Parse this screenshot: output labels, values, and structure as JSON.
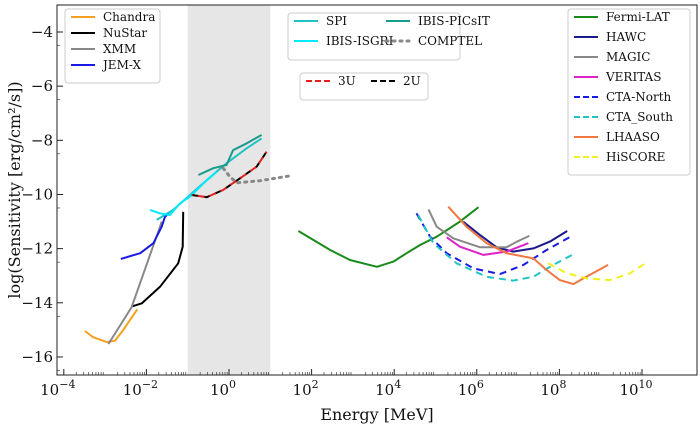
{
  "chart_data": {
    "type": "line",
    "xlabel": "Energy [MeV]",
    "ylabel": "log(Sensitivity [erg/cm²/s])",
    "x_scale": "log",
    "xlim_log10": [
      -4.2,
      11.3
    ],
    "ylim": [
      -16.66,
      -3.0
    ],
    "x_ticks": [
      {
        "base": "10",
        "exp": "−4",
        "v": -4
      },
      {
        "base": "10",
        "exp": "−2",
        "v": -2
      },
      {
        "base": "10",
        "exp": "0",
        "v": 0
      },
      {
        "base": "10",
        "exp": "2",
        "v": 2
      },
      {
        "base": "10",
        "exp": "4",
        "v": 4
      },
      {
        "base": "10",
        "exp": "6",
        "v": 6
      },
      {
        "base": "10",
        "exp": "8",
        "v": 8
      },
      {
        "base": "10",
        "exp": "10",
        "v": 10
      }
    ],
    "y_ticks": [
      "-4",
      "-6",
      "-8",
      "-10",
      "-12",
      "-14",
      "-16"
    ],
    "grid": false,
    "shaded_band_log10E": [
      -1,
      1
    ],
    "shaded_color": "#e6e6e6",
    "legends": [
      {
        "placement": "top-left",
        "items": [
          "Chandra",
          "NuStar",
          "XMM",
          "JEM-X"
        ]
      },
      {
        "placement": "top-center",
        "items": [
          "SPI",
          "IBIS-PICsIT",
          "IBIS-ISGRI",
          "COMPTEL"
        ]
      },
      {
        "placement": "upper-center",
        "items": [
          "3U",
          "2U"
        ]
      },
      {
        "placement": "top-right",
        "items": [
          "Fermi-LAT",
          "HAWC",
          "MAGIC",
          "VERITAS",
          "CTA-North",
          "CTA_South",
          "LHAASO",
          "HiSCORE"
        ]
      }
    ],
    "series": [
      {
        "name": "Chandra",
        "color": "#f5a020",
        "style": "solid",
        "log10E": [
          -3.49,
          -3.29,
          -2.96,
          -2.76,
          -2.56,
          -2.22
        ],
        "logS": [
          -15.04,
          -15.27,
          -15.45,
          -15.4,
          -15.0,
          -14.24
        ]
      },
      {
        "name": "NuStar",
        "color": "#000000",
        "style": "solid",
        "log10E": [
          -2.36,
          -2.11,
          -1.67,
          -1.23,
          -1.12,
          -1.11
        ],
        "logS": [
          -14.14,
          -14.02,
          -13.41,
          -12.54,
          -11.93,
          -10.64
        ]
      },
      {
        "name": "XMM",
        "color": "#888888",
        "style": "solid",
        "log10E": [
          -2.92,
          -2.36,
          -1.67,
          -1.63
        ],
        "logS": [
          -15.52,
          -14.17,
          -11.19,
          -11.0
        ]
      },
      {
        "name": "JEM-X",
        "color": "#1a1ae6",
        "style": "solid",
        "log10E": [
          -2.62,
          -2.15,
          -1.83,
          -1.63,
          -1.55,
          -1.45
        ],
        "logS": [
          -12.38,
          -12.17,
          -11.8,
          -11.19,
          -10.82,
          -10.69
        ]
      },
      {
        "name": "SPI",
        "color": "#20c4c4",
        "style": "solid",
        "log10E": [
          -1.75,
          -1.35,
          -0.9,
          -0.54,
          -0.06,
          0.43,
          0.79
        ],
        "logS": [
          -10.94,
          -10.57,
          -9.96,
          -9.47,
          -8.85,
          -8.29,
          -7.93
        ]
      },
      {
        "name": "IBIS-ISGRI",
        "color": "#00eaff",
        "style": "solid",
        "log10E": [
          -1.91,
          -1.67,
          -1.43,
          -1.19,
          -0.94,
          -0.62,
          -0.3
        ],
        "logS": [
          -10.57,
          -10.7,
          -10.76,
          -10.33,
          -10.08,
          -9.59,
          -9.16
        ]
      },
      {
        "name": "IBIS-PICsIT",
        "color": "#1a9a8a",
        "style": "solid",
        "log10E": [
          -0.74,
          -0.38,
          -0.06,
          0.1,
          0.43,
          0.79
        ],
        "logS": [
          -9.28,
          -9.03,
          -8.91,
          -8.36,
          -8.11,
          -7.8
        ]
      },
      {
        "name": "COMPTEL",
        "color": "#888888",
        "style": "dotted",
        "log10E": [
          -0.14,
          0.02,
          0.19,
          0.75,
          1.44
        ],
        "logS": [
          -9.03,
          -9.34,
          -9.57,
          -9.49,
          -9.32
        ]
      },
      {
        "name": "2U",
        "color": "#000000",
        "style": "dashed",
        "log10E": [
          -0.9,
          -0.54,
          -0.14,
          0.27,
          0.67,
          0.91
        ],
        "logS": [
          -10.02,
          -10.1,
          -9.83,
          -9.4,
          -8.97,
          -8.42
        ]
      },
      {
        "name": "3U",
        "color": "#e62020",
        "style": "dashed",
        "log10E": [
          -0.9,
          -0.54,
          -0.14,
          0.27,
          0.67,
          0.91
        ],
        "logS": [
          -10.02,
          -10.1,
          -9.83,
          -9.4,
          -8.97,
          -8.42
        ]
      },
      {
        "name": "Fermi-LAT",
        "color": "#1a8a1a",
        "style": "solid",
        "log10E": [
          1.68,
          2.45,
          2.93,
          3.58,
          3.98,
          4.3,
          4.62,
          5.03,
          5.59,
          6.04
        ],
        "logS": [
          -11.35,
          -12.05,
          -12.42,
          -12.67,
          -12.48,
          -12.17,
          -11.87,
          -11.56,
          -11.0,
          -10.47
        ]
      },
      {
        "name": "HAWC",
        "color": "#1a1a8a",
        "style": "solid",
        "log10E": [
          5.67,
          6.08,
          6.48,
          6.88,
          7.37,
          7.77,
          8.19
        ],
        "logS": [
          -11.0,
          -11.5,
          -11.95,
          -12.11,
          -11.99,
          -11.74,
          -11.35
        ]
      },
      {
        "name": "MAGIC",
        "color": "#888888",
        "style": "solid",
        "log10E": [
          4.83,
          5.03,
          5.43,
          6.08,
          6.72,
          6.97,
          7.27
        ],
        "logS": [
          -10.55,
          -11.19,
          -11.62,
          -11.95,
          -11.95,
          -11.74,
          -11.53
        ]
      },
      {
        "name": "VERITAS",
        "color": "#e020c8",
        "style": "solid",
        "log10E": [
          5.27,
          5.59,
          6.16,
          6.72,
          7.25
        ],
        "logS": [
          -11.58,
          -11.93,
          -12.23,
          -12.11,
          -11.8
        ]
      },
      {
        "name": "CTA-North",
        "color": "#1a1ae6",
        "style": "dashed",
        "log10E": [
          4.54,
          4.87,
          5.27,
          5.92,
          6.56,
          7.13,
          7.69,
          8.34
        ],
        "logS": [
          -10.7,
          -11.56,
          -12.17,
          -12.73,
          -12.94,
          -12.6,
          -12.05,
          -11.5
        ]
      },
      {
        "name": "CTA_South",
        "color": "#20c4c4",
        "style": "dashed",
        "log10E": [
          4.58,
          4.95,
          5.51,
          6.24,
          6.88,
          7.37,
          7.85,
          8.3
        ],
        "logS": [
          -10.76,
          -11.8,
          -12.54,
          -13.04,
          -13.18,
          -13.04,
          -12.6,
          -12.24
        ]
      },
      {
        "name": "LHAASO",
        "color": "#f07840",
        "style": "solid",
        "log10E": [
          5.31,
          5.75,
          6.24,
          6.72,
          7.37,
          7.69,
          8.01,
          8.34,
          8.58,
          9.18
        ],
        "logS": [
          -10.45,
          -11.19,
          -11.8,
          -12.17,
          -12.36,
          -12.79,
          -13.16,
          -13.31,
          -13.1,
          -12.6
        ]
      },
      {
        "name": "HiSCORE",
        "color": "#f0f020",
        "style": "dashed",
        "log10E": [
          7.73,
          8.18,
          8.66,
          9.22,
          9.71,
          10.15
        ],
        "logS": [
          -12.54,
          -12.91,
          -13.1,
          -13.16,
          -12.91,
          -12.48
        ]
      }
    ]
  }
}
